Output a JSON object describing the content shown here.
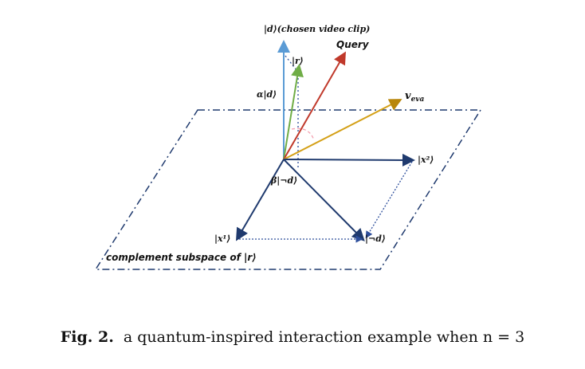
{
  "colors": {
    "plane": "#1f3a6e",
    "d_axis": "#5b9bd5",
    "r_vec": "#70ad47",
    "query": "#c0392b",
    "v_eva": "#d4a017",
    "x_vec": "#1f3a6e",
    "dotted": "#2e4f9c",
    "angle": "#f4a0b0"
  },
  "labels": {
    "d_axis": "|d⟩(chosen video clip)",
    "r": "|r⟩",
    "query": "Query",
    "alpha_d": "α|d⟩",
    "v_eva": "v",
    "v_eva_sub": "eva",
    "x2": "|x²⟩",
    "beta_not_d": "β|¬d⟩",
    "x1": "|x¹⟩",
    "not_d": "|¬d⟩",
    "complement": "complement subspace of |r⟩"
  },
  "caption": {
    "prefix": "Fig. 2.",
    "text": "a quantum-inspired interaction example when n = 3"
  }
}
